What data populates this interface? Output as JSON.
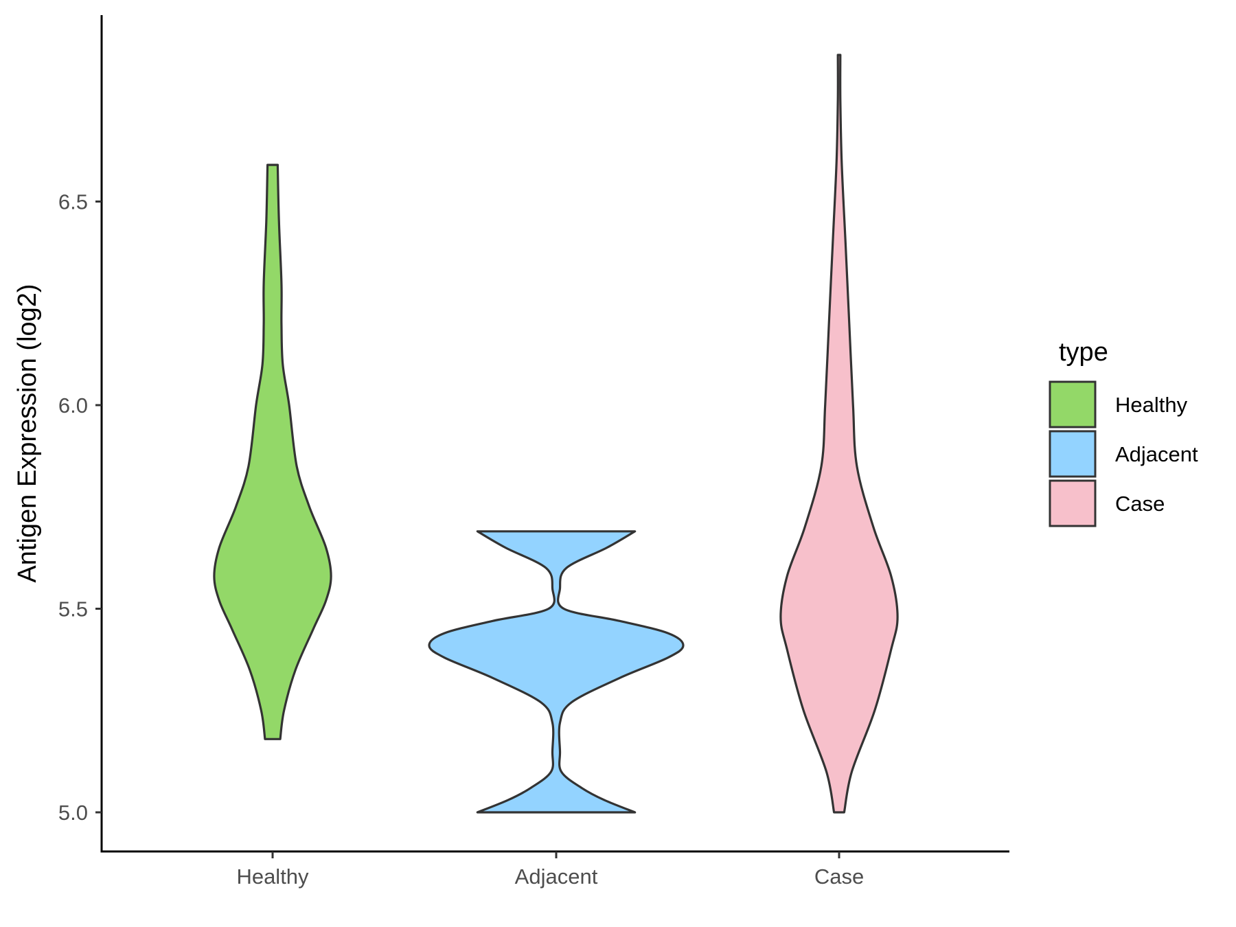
{
  "chart_data": {
    "type": "violin",
    "ylabel": "Antigen Expression (log2)",
    "xlabel": "",
    "ylim": [
      4.9,
      6.95
    ],
    "y_ticks": [
      "5.0",
      "5.5",
      "6.0",
      "6.5"
    ],
    "y_tick_values": [
      5.0,
      5.5,
      6.0,
      6.5
    ],
    "grid": false,
    "categories": [
      "Healthy",
      "Adjacent",
      "Case"
    ],
    "legend": {
      "title": "type",
      "position": "right",
      "entries": [
        {
          "label": "Healthy",
          "color": "#93d868"
        },
        {
          "label": "Adjacent",
          "color": "#93d3ff"
        },
        {
          "label": "Case",
          "color": "#f7c0cb"
        }
      ]
    },
    "series": [
      {
        "name": "Healthy",
        "color": "#93d868",
        "min": 5.18,
        "max": 6.59,
        "density_profile": [
          {
            "y": 5.18,
            "w": 0.06
          },
          {
            "y": 5.25,
            "w": 0.09
          },
          {
            "y": 5.35,
            "w": 0.18
          },
          {
            "y": 5.45,
            "w": 0.32
          },
          {
            "y": 5.52,
            "w": 0.42
          },
          {
            "y": 5.58,
            "w": 0.46
          },
          {
            "y": 5.65,
            "w": 0.42
          },
          {
            "y": 5.75,
            "w": 0.29
          },
          {
            "y": 5.85,
            "w": 0.19
          },
          {
            "y": 6.0,
            "w": 0.13
          },
          {
            "y": 6.1,
            "w": 0.08
          },
          {
            "y": 6.2,
            "w": 0.07
          },
          {
            "y": 6.3,
            "w": 0.07
          },
          {
            "y": 6.45,
            "w": 0.05
          },
          {
            "y": 6.59,
            "w": 0.04
          }
        ]
      },
      {
        "name": "Adjacent",
        "color": "#93d3ff",
        "min": 5.0,
        "max": 5.69,
        "density_profile": [
          {
            "y": 5.0,
            "w": 0.62
          },
          {
            "y": 5.03,
            "w": 0.38
          },
          {
            "y": 5.06,
            "w": 0.2
          },
          {
            "y": 5.1,
            "w": 0.04
          },
          {
            "y": 5.15,
            "w": 0.03
          },
          {
            "y": 5.22,
            "w": 0.03
          },
          {
            "y": 5.27,
            "w": 0.12
          },
          {
            "y": 5.33,
            "w": 0.5
          },
          {
            "y": 5.38,
            "w": 0.88
          },
          {
            "y": 5.41,
            "w": 1.0
          },
          {
            "y": 5.44,
            "w": 0.88
          },
          {
            "y": 5.47,
            "w": 0.5
          },
          {
            "y": 5.5,
            "w": 0.06
          },
          {
            "y": 5.55,
            "w": 0.03
          },
          {
            "y": 5.6,
            "w": 0.08
          },
          {
            "y": 5.65,
            "w": 0.4
          },
          {
            "y": 5.69,
            "w": 0.62
          }
        ]
      },
      {
        "name": "Case",
        "color": "#f7c0cb",
        "min": 5.0,
        "max": 6.86,
        "density_profile": [
          {
            "y": 5.0,
            "w": 0.04
          },
          {
            "y": 5.1,
            "w": 0.1
          },
          {
            "y": 5.25,
            "w": 0.28
          },
          {
            "y": 5.4,
            "w": 0.41
          },
          {
            "y": 5.48,
            "w": 0.46
          },
          {
            "y": 5.58,
            "w": 0.41
          },
          {
            "y": 5.7,
            "w": 0.27
          },
          {
            "y": 5.85,
            "w": 0.14
          },
          {
            "y": 6.0,
            "w": 0.11
          },
          {
            "y": 6.2,
            "w": 0.08
          },
          {
            "y": 6.4,
            "w": 0.05
          },
          {
            "y": 6.6,
            "w": 0.02
          },
          {
            "y": 6.75,
            "w": 0.01
          },
          {
            "y": 6.86,
            "w": 0.01
          }
        ]
      }
    ]
  }
}
